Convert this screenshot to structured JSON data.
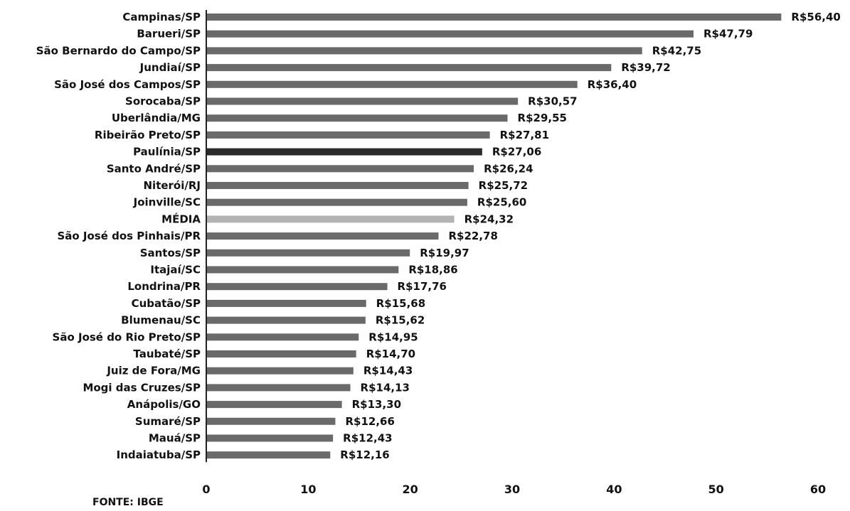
{
  "chart_data": {
    "type": "bar",
    "orientation": "horizontal",
    "title": "",
    "xlabel": "",
    "ylabel": "",
    "xlim": [
      0,
      60
    ],
    "x_ticks": [
      "0",
      "10",
      "20",
      "30",
      "40",
      "50",
      "60"
    ],
    "grid": false,
    "categories": [
      "Campinas/SP",
      "Barueri/SP",
      "São Bernardo do Campo/SP",
      "Jundiaí/SP",
      "São José dos Campos/SP",
      "Sorocaba/SP",
      "Uberlândia/MG",
      "Ribeirão Preto/SP",
      "Paulínia/SP",
      "Santo André/SP",
      "Niterói/RJ",
      "Joinville/SC",
      "MÉDIA",
      "São José dos Pinhais/PR",
      "Santos/SP",
      "Itajaí/SC",
      "Londrina/PR",
      "Cubatão/SP",
      "Blumenau/SC",
      "São José do Rio Preto/SP",
      "Taubaté/SP",
      "Juiz de Fora/MG",
      "Mogi das Cruzes/SP",
      "Anápolis/GO",
      "Sumaré/SP",
      "Mauá/SP",
      "Indaiatuba/SP"
    ],
    "values": [
      56.4,
      47.79,
      42.75,
      39.72,
      36.4,
      30.57,
      29.55,
      27.81,
      27.06,
      26.24,
      25.72,
      25.6,
      24.32,
      22.78,
      19.97,
      18.86,
      17.76,
      15.68,
      15.62,
      14.95,
      14.7,
      14.43,
      14.13,
      13.3,
      12.66,
      12.43,
      12.16
    ],
    "value_labels": [
      "R$56,40",
      "R$47,79",
      "R$42,75",
      "R$39,72",
      "R$36,40",
      "R$30,57",
      "R$29,55",
      "R$27,81",
      "R$27,06",
      "R$26,24",
      "R$25,72",
      "R$25,60",
      "R$24,32",
      "R$22,78",
      "R$19,97",
      "R$18,86",
      "R$17,76",
      "R$15,68",
      "R$15,62",
      "R$14,95",
      "R$14,70",
      "R$14,43",
      "R$14,13",
      "R$13,30",
      "R$12,66",
      "R$12,43",
      "R$12,16"
    ],
    "colors": {
      "bar": "#6a6a6a",
      "highlight_bar": "#2b2b2b",
      "average_bar": "#b3b3b3",
      "axis": "#222222"
    },
    "highlight_category": "Paulínia/SP",
    "average_category": "MÉDIA"
  },
  "source_note": "FONTE: IBGE"
}
